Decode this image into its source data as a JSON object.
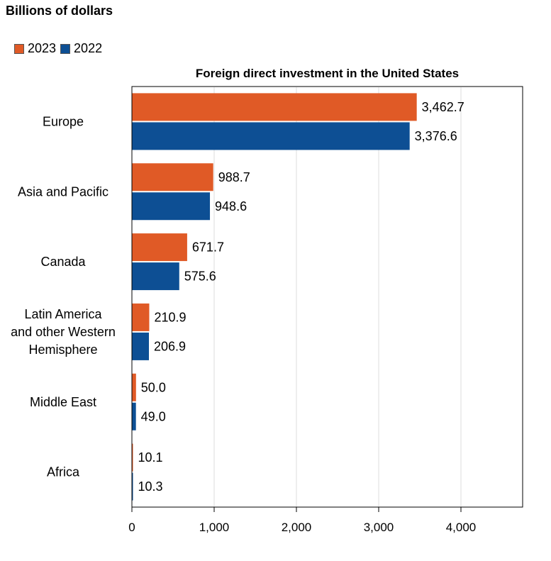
{
  "unit_label": "Billions of dollars",
  "legend": [
    {
      "label": "2023",
      "color": "#e05a26"
    },
    {
      "label": "2022",
      "color": "#0d4f94"
    }
  ],
  "chart_data": {
    "type": "bar",
    "orientation": "horizontal",
    "title": "Foreign direct investment in the United States",
    "xlabel": "",
    "ylabel": "",
    "categories": [
      "Europe",
      "Asia and Pacific",
      "Canada",
      "Latin America and other Western Hemisphere",
      "Middle East",
      "Africa"
    ],
    "category_lines": [
      [
        "Europe"
      ],
      [
        "Asia and Pacific"
      ],
      [
        "Canada"
      ],
      [
        "Latin America",
        "and other Western",
        "Hemisphere"
      ],
      [
        "Middle East"
      ],
      [
        "Africa"
      ]
    ],
    "series": [
      {
        "name": "2023",
        "color": "#e05a26",
        "values": [
          3462.7,
          988.7,
          671.7,
          210.9,
          50.0,
          10.1
        ],
        "labels": [
          "3,462.7",
          "988.7",
          "671.7",
          "210.9",
          "50.0",
          "10.1"
        ]
      },
      {
        "name": "2022",
        "color": "#0d4f94",
        "values": [
          3376.6,
          948.6,
          575.6,
          206.9,
          49.0,
          10.3
        ],
        "labels": [
          "3,376.6",
          "948.6",
          "575.6",
          "206.9",
          "49.0",
          "10.3"
        ]
      }
    ],
    "xlim": [
      0,
      4750
    ],
    "xticks": [
      0,
      1000,
      2000,
      3000,
      4000
    ],
    "xtick_labels": [
      "0",
      "1,000",
      "2,000",
      "3,000",
      "4,000"
    ],
    "grid": true,
    "legend_position": "top-left"
  }
}
